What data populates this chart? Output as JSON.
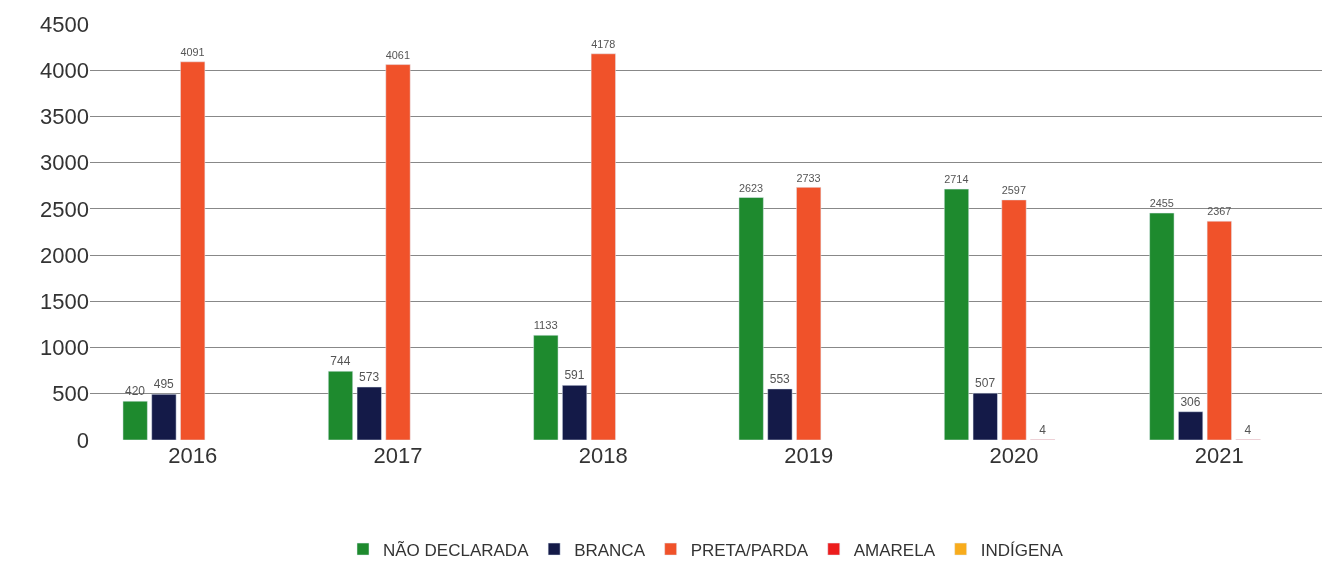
{
  "chart_data": {
    "type": "bar",
    "categories": [
      "2016",
      "2017",
      "2018",
      "2019",
      "2020",
      "2021"
    ],
    "series": [
      {
        "name": "NÃO DECLARADA",
        "color": "#1e8a2e",
        "values": [
          420,
          744,
          1133,
          2623,
          2714,
          2455
        ]
      },
      {
        "name": "BRANCA",
        "color": "#141a48",
        "values": [
          495,
          573,
          591,
          553,
          507,
          306
        ]
      },
      {
        "name": "PRETA/PARDA",
        "color": "#f0522a",
        "values": [
          4091,
          4061,
          4178,
          2733,
          2597,
          2367
        ]
      },
      {
        "name": "AMARELA",
        "color": "#ec1c1c",
        "values": [
          null,
          null,
          null,
          null,
          4,
          4
        ]
      },
      {
        "name": "INDÍGENA",
        "color": "#f8ac1c",
        "values": [
          null,
          null,
          null,
          null,
          null,
          null
        ]
      }
    ],
    "ylim": [
      0,
      4500
    ],
    "yticks": [
      0,
      500,
      1000,
      1500,
      2000,
      2500,
      3000,
      3500,
      4000,
      4500
    ],
    "grid": "y",
    "legend": "bottom",
    "data_labels": true
  }
}
